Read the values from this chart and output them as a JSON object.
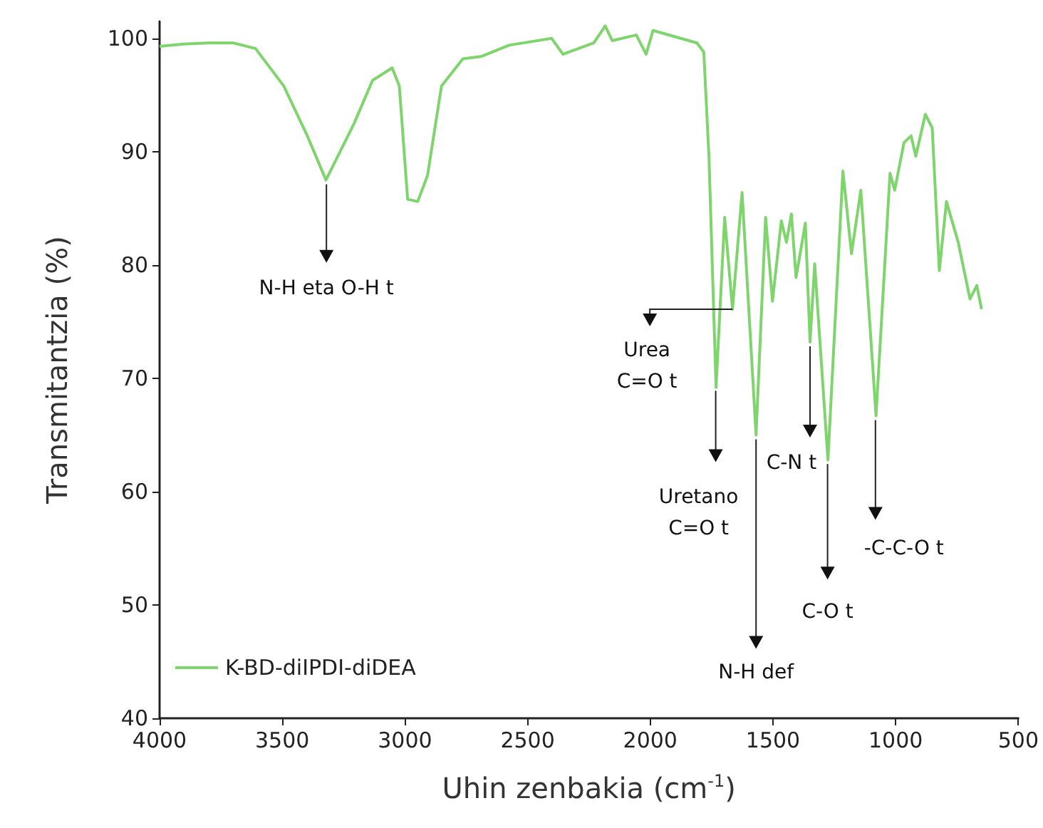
{
  "chart_data": {
    "type": "line",
    "xlabel": "Uhin zenbakia (cm$^{-1}$)",
    "ylabel": "Transmitantzia (%)",
    "xlim": [
      4000,
      500
    ],
    "xticks": [
      4000,
      3500,
      3000,
      2500,
      2000,
      1500,
      1000,
      500
    ],
    "ylim": [
      40,
      101.5
    ],
    "yticks": [
      40,
      50,
      60,
      70,
      80,
      90,
      100
    ],
    "grid": false,
    "legend": "bottom left",
    "marker": "none",
    "line_style": "solid",
    "series": [
      {
        "name": "K-BD-diIPDI-diDEA",
        "color": "#7fd46e",
        "x": [
          4000,
          3900,
          3800,
          3700,
          3609,
          3494,
          3400,
          3322,
          3207,
          3132,
          3052,
          3023,
          2989,
          2948,
          2908,
          2851,
          2764,
          2690,
          2575,
          2402,
          2356,
          2230,
          2184,
          2155,
          2057,
          2017,
          1989,
          1810,
          1782,
          1761,
          1732,
          1697,
          1665,
          1626,
          1569,
          1530,
          1502,
          1466,
          1445,
          1425,
          1406,
          1368,
          1349,
          1330,
          1276,
          1215,
          1180,
          1142,
          1080,
          1023,
          1004,
          966,
          937,
          918,
          879,
          851,
          822,
          793,
          745,
          697,
          669,
          650
        ],
        "values": [
          99.3,
          99.5,
          99.6,
          99.6,
          99.1,
          95.8,
          91.5,
          87.5,
          92.5,
          96.3,
          97.4,
          95.8,
          85.8,
          85.6,
          87.9,
          95.8,
          98.2,
          98.4,
          99.4,
          100.0,
          98.6,
          99.6,
          101.1,
          99.8,
          100.3,
          98.6,
          100.7,
          99.6,
          98.8,
          89.6,
          69.2,
          84.2,
          76.1,
          86.4,
          65.0,
          84.2,
          76.8,
          83.9,
          82.0,
          84.5,
          78.9,
          83.7,
          73.2,
          80.1,
          62.8,
          88.3,
          81.0,
          86.6,
          66.7,
          88.1,
          86.6,
          90.8,
          91.4,
          89.6,
          93.3,
          92.1,
          79.5,
          85.6,
          82.0,
          77.0,
          78.2,
          76.1
        ]
      }
    ],
    "annotations": [
      {
        "text": "N-H eta O-H  t",
        "x": 3320,
        "y": 87.5
      },
      {
        "text": "Urea\nC=O t",
        "x": 1665,
        "y": 76.1
      },
      "Uretano\nC=O t",
      {
        "text": "N-H def",
        "x": 1569,
        "y": 65.0
      },
      {
        "text": "C-N t",
        "x": 1349,
        "y": 73.2
      },
      "C-O t",
      "-C-C-O t"
    ]
  }
}
